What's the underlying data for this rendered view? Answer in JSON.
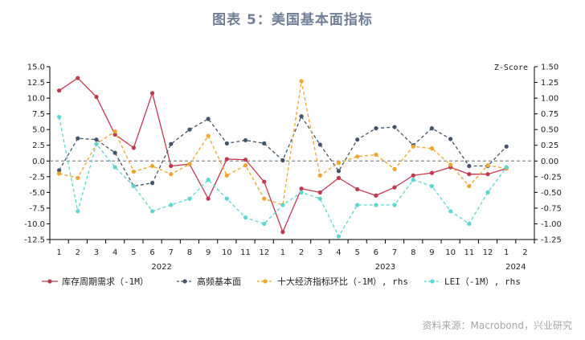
{
  "title": "图表 5：美国基本面指标",
  "source": "资料来源：Macrobond，兴业研究",
  "right_axis_label": "Z-Score",
  "chart_data": {
    "type": "line",
    "title": "图表 5：美国基本面指标",
    "x_month_labels": [
      "1",
      "2",
      "3",
      "4",
      "5",
      "6",
      "7",
      "8",
      "9",
      "10",
      "11",
      "12",
      "1",
      "2",
      "3",
      "4",
      "5",
      "6",
      "7",
      "8",
      "9",
      "10",
      "11",
      "12",
      "1",
      "2"
    ],
    "x_year_labels": [
      {
        "label": "2022",
        "index": 5.5
      },
      {
        "label": "2023",
        "index": 17.5
      },
      {
        "label": "2024",
        "index": 24.5
      }
    ],
    "left_ylim": [
      -12.5,
      15.0
    ],
    "left_ticks": [
      "15.0",
      "12.5",
      "10.0",
      "7.5",
      "5.0",
      "2.5",
      "0.0",
      "-2.5",
      "-5.0",
      "-7.5",
      "-10.0",
      "-12.5"
    ],
    "right_ylim": [
      -1.25,
      1.5
    ],
    "right_ticks": [
      "1.50",
      "1.25",
      "1.00",
      "0.75",
      "0.50",
      "0.25",
      "0.00",
      "-0.25",
      "-0.50",
      "-0.75",
      "-1.00",
      "-1.25"
    ],
    "series": [
      {
        "name": "库存周期需求（-1M）",
        "axis": "left",
        "color": "#c0394f",
        "style": "solid",
        "marker": "circle",
        "values": [
          11.2,
          13.2,
          10.2,
          4.2,
          2.1,
          10.8,
          -0.8,
          -0.5,
          -6.0,
          0.3,
          0.2,
          -3.3,
          -11.3,
          -4.4,
          -5.0,
          -2.7,
          -4.5,
          -5.5,
          -4.2,
          -2.3,
          -1.9,
          -1.0,
          -2.1,
          -2.1,
          -1.2,
          null
        ]
      },
      {
        "name": "高频基本面",
        "axis": "left",
        "color": "#44546a",
        "style": "dash",
        "marker": "circle",
        "values": [
          -1.5,
          3.6,
          3.4,
          1.3,
          -4.0,
          -3.5,
          2.7,
          5.0,
          6.7,
          2.8,
          3.3,
          2.8,
          0.1,
          7.1,
          2.6,
          -1.6,
          3.4,
          5.2,
          5.4,
          2.5,
          5.2,
          3.5,
          -0.8,
          -0.8,
          2.3,
          null
        ]
      },
      {
        "name": "十大经济指标环比（-1M）, rhs",
        "axis": "right",
        "color": "#f0a52c",
        "style": "dash",
        "marker": "circle",
        "values": [
          -0.2,
          -0.27,
          0.27,
          0.47,
          -0.17,
          -0.08,
          -0.21,
          -0.05,
          0.4,
          -0.23,
          -0.07,
          -0.6,
          -0.7,
          1.27,
          -0.23,
          -0.03,
          0.07,
          0.1,
          -0.13,
          0.23,
          0.2,
          -0.06,
          -0.4,
          -0.07,
          -0.12,
          null
        ]
      },
      {
        "name": "LEI（-1M）, rhs",
        "axis": "right",
        "color": "#5cd6d0",
        "style": "dash",
        "marker": "circle",
        "values": [
          0.7,
          -0.8,
          0.27,
          -0.1,
          -0.4,
          -0.8,
          -0.7,
          -0.6,
          -0.3,
          -0.6,
          -0.9,
          -1.0,
          -0.7,
          -0.5,
          -0.6,
          -1.2,
          -0.7,
          -0.7,
          -0.7,
          -0.3,
          -0.4,
          -0.8,
          -1.0,
          -0.5,
          -0.1,
          null
        ]
      }
    ],
    "zero_line": true,
    "legend_position": "bottom"
  }
}
